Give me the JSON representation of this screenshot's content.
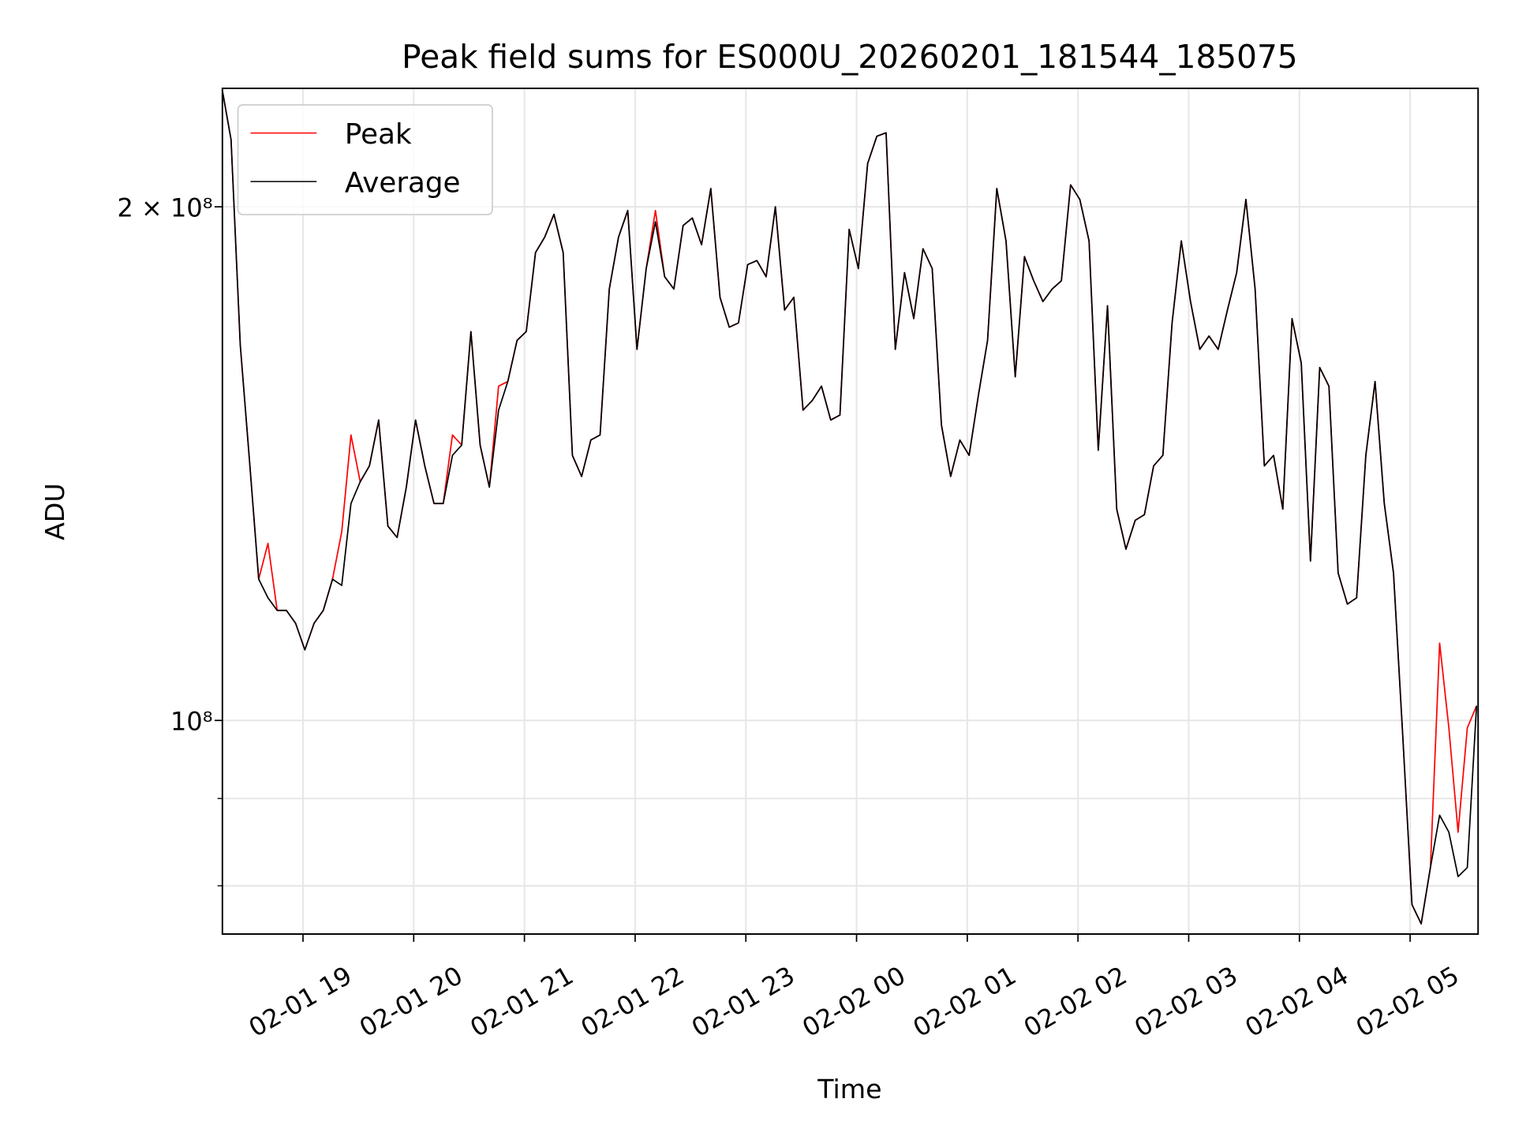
{
  "chart_data": {
    "type": "line",
    "title": "Peak field sums for ES000U_20260201_181544_185075",
    "xlabel": "Time",
    "ylabel": "ADU",
    "y_scale": "log",
    "y_unit_multiplier": 100000000,
    "ylim": [
      0.75,
      2.35
    ],
    "x_start": "2026-02-01 18:16",
    "x_step_minutes": 5,
    "xlim": [
      "02-01 18:16",
      "02-02 05:37"
    ],
    "grid": true,
    "legend_position": "upper-left",
    "y_ticks_major": [
      {
        "value": 1.0,
        "label": "10⁸"
      },
      {
        "value": 2.0,
        "label": "2 × 10⁸"
      }
    ],
    "y_ticks_minor": [
      0.8,
      0.9
    ],
    "x_ticks": [
      {
        "hour": 19,
        "label": "02-01 19"
      },
      {
        "hour": 20,
        "label": "02-01 20"
      },
      {
        "hour": 21,
        "label": "02-01 21"
      },
      {
        "hour": 22,
        "label": "02-01 22"
      },
      {
        "hour": 23,
        "label": "02-01 23"
      },
      {
        "hour": 24,
        "label": "02-02 00"
      },
      {
        "hour": 25,
        "label": "02-02 01"
      },
      {
        "hour": 26,
        "label": "02-02 02"
      },
      {
        "hour": 27,
        "label": "02-02 03"
      },
      {
        "hour": 28,
        "label": "02-02 04"
      },
      {
        "hour": 29,
        "label": "02-02 05"
      }
    ],
    "series": [
      {
        "name": "Peak",
        "color": "#ff0000",
        "values": [
          2.35,
          2.19,
          1.66,
          1.42,
          1.21,
          1.27,
          1.16,
          1.16,
          1.14,
          1.1,
          1.14,
          1.16,
          1.21,
          1.29,
          1.47,
          1.38,
          1.41,
          1.5,
          1.3,
          1.28,
          1.37,
          1.5,
          1.41,
          1.34,
          1.34,
          1.47,
          1.45,
          1.69,
          1.45,
          1.37,
          1.57,
          1.58,
          1.67,
          1.69,
          1.88,
          1.92,
          1.98,
          1.88,
          1.43,
          1.39,
          1.46,
          1.47,
          1.79,
          1.92,
          1.99,
          1.65,
          1.84,
          1.99,
          1.82,
          1.79,
          1.95,
          1.97,
          1.9,
          2.05,
          1.77,
          1.7,
          1.71,
          1.85,
          1.86,
          1.82,
          2.0,
          1.74,
          1.77,
          1.52,
          1.54,
          1.57,
          1.5,
          1.51,
          1.94,
          1.84,
          2.12,
          2.2,
          2.21,
          1.65,
          1.83,
          1.72,
          1.89,
          1.84,
          1.49,
          1.39,
          1.46,
          1.43,
          1.55,
          1.67,
          2.05,
          1.91,
          1.59,
          1.87,
          1.81,
          1.76,
          1.79,
          1.81,
          2.06,
          2.02,
          1.91,
          1.44,
          1.75,
          1.33,
          1.26,
          1.31,
          1.32,
          1.41,
          1.43,
          1.71,
          1.91,
          1.76,
          1.65,
          1.68,
          1.65,
          1.74,
          1.83,
          2.02,
          1.79,
          1.41,
          1.43,
          1.33,
          1.72,
          1.62,
          1.24,
          1.61,
          1.57,
          1.22,
          1.17,
          1.18,
          1.43,
          1.58,
          1.34,
          1.22,
          0.98,
          0.78,
          0.76,
          0.82,
          1.11,
          0.99,
          0.86,
          0.99,
          1.02
        ]
      },
      {
        "name": "Average",
        "color": "#000000",
        "values": [
          2.35,
          2.19,
          1.66,
          1.42,
          1.21,
          1.18,
          1.16,
          1.16,
          1.14,
          1.1,
          1.14,
          1.16,
          1.21,
          1.2,
          1.34,
          1.38,
          1.41,
          1.5,
          1.3,
          1.28,
          1.37,
          1.5,
          1.41,
          1.34,
          1.34,
          1.43,
          1.45,
          1.69,
          1.45,
          1.37,
          1.52,
          1.58,
          1.67,
          1.69,
          1.88,
          1.92,
          1.98,
          1.88,
          1.43,
          1.39,
          1.46,
          1.47,
          1.79,
          1.92,
          1.99,
          1.65,
          1.84,
          1.96,
          1.82,
          1.79,
          1.95,
          1.97,
          1.9,
          2.05,
          1.77,
          1.7,
          1.71,
          1.85,
          1.86,
          1.82,
          2.0,
          1.74,
          1.77,
          1.52,
          1.54,
          1.57,
          1.5,
          1.51,
          1.94,
          1.84,
          2.12,
          2.2,
          2.21,
          1.65,
          1.83,
          1.72,
          1.89,
          1.84,
          1.49,
          1.39,
          1.46,
          1.43,
          1.55,
          1.67,
          2.05,
          1.91,
          1.59,
          1.87,
          1.81,
          1.76,
          1.79,
          1.81,
          2.06,
          2.02,
          1.91,
          1.44,
          1.75,
          1.33,
          1.26,
          1.31,
          1.32,
          1.41,
          1.43,
          1.71,
          1.91,
          1.76,
          1.65,
          1.68,
          1.65,
          1.74,
          1.83,
          2.02,
          1.79,
          1.41,
          1.43,
          1.33,
          1.72,
          1.62,
          1.24,
          1.61,
          1.57,
          1.22,
          1.17,
          1.18,
          1.43,
          1.58,
          1.34,
          1.22,
          0.98,
          0.78,
          0.76,
          0.82,
          0.88,
          0.86,
          0.81,
          0.82,
          1.02
        ]
      }
    ]
  }
}
